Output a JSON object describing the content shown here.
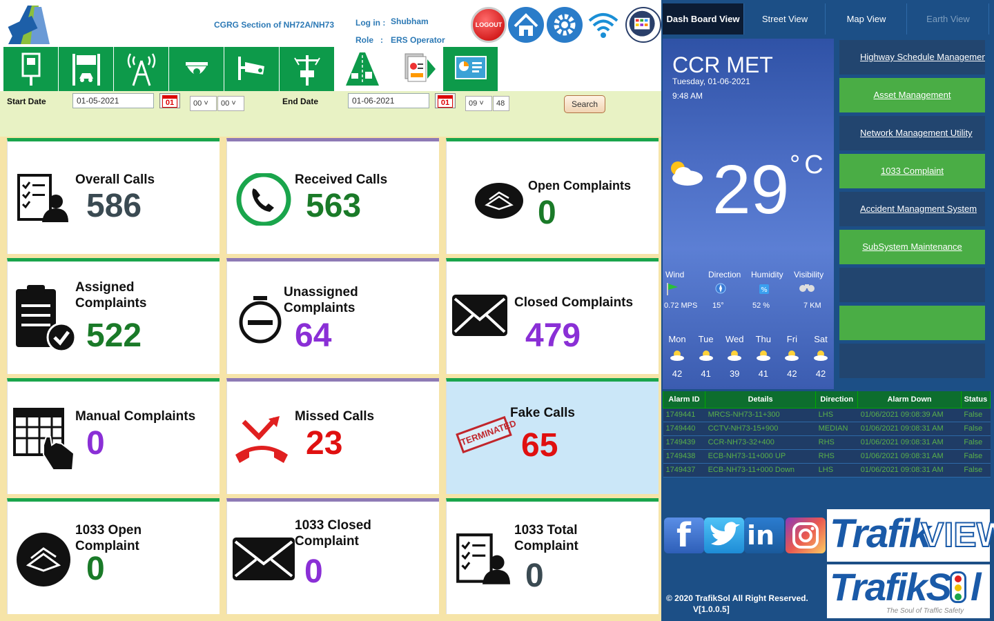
{
  "header": {
    "section": "CGRG Section of NH72A/NH73",
    "login_label": "Log in :",
    "login_value": "Shubham",
    "role_label": "Role",
    "role_colon": ":",
    "role_value": "ERS Operator",
    "logout_label": "LOGOUT"
  },
  "filter": {
    "start_label": "Start Date",
    "start_date": "01-05-2021",
    "start_cal": "01",
    "start_hour": "00",
    "start_min": "00",
    "end_label": "End Date",
    "end_date": "01-06-2021",
    "end_cal": "01",
    "end_hour": "09",
    "end_min": "48",
    "search_label": "Search"
  },
  "cards": {
    "overall_calls": {
      "title": "Overall Calls",
      "value": "586"
    },
    "received_calls": {
      "title": "Received Calls",
      "value": "563"
    },
    "open_complaints": {
      "title": "Open Complaints",
      "value": "0"
    },
    "assigned_complaints": {
      "title1": "Assigned",
      "title2": "Complaints",
      "value": "522"
    },
    "unassigned_complaints": {
      "title1": "Unassigned",
      "title2": "Complaints",
      "value": "64"
    },
    "closed_complaints": {
      "title": "Closed Complaints",
      "value": "479"
    },
    "manual_complaints": {
      "title": "Manual Complaints",
      "value": "0"
    },
    "missed_calls": {
      "title": "Missed Calls",
      "value": "23"
    },
    "fake_calls": {
      "title": "Fake Calls",
      "value": "65",
      "stamp": "TERMINATED"
    },
    "open_1033": {
      "title1": "1033 Open",
      "title2": "Complaint",
      "value": "0"
    },
    "closed_1033": {
      "title1": "1033 Closed",
      "title2": "Complaint",
      "value": "0"
    },
    "total_1033": {
      "title1": "1033 Total",
      "title2": "Complaint",
      "value": "0"
    }
  },
  "tabs": [
    "Dash Board View",
    "Street View",
    "Map View",
    "Earth View"
  ],
  "weather": {
    "location": "CCR MET",
    "date": "Tuesday, 01-06-2021",
    "time": "9:48 AM",
    "temp": "29",
    "unit": "°C",
    "wind_label": "Wind",
    "wind_value": "0.72 MPS",
    "direction_label": "Direction",
    "direction_value": "15°",
    "humidity_label": "Humidity",
    "humidity_value": "52 %",
    "visibility_label": "Visibility",
    "visibility_value": "7 KM",
    "forecast": [
      {
        "day": "Mon",
        "temp": "42"
      },
      {
        "day": "Tue",
        "temp": "41"
      },
      {
        "day": "Wed",
        "temp": "39"
      },
      {
        "day": "Thu",
        "temp": "41"
      },
      {
        "day": "Fri",
        "temp": "42"
      },
      {
        "day": "Sat",
        "temp": "42"
      }
    ]
  },
  "side_menu": [
    "Highway Schedule Management",
    "Asset Management",
    "Network Management Utility",
    "1033 Complaint",
    "Accident Managment System",
    "SubSystem Maintenance",
    "",
    "",
    ""
  ],
  "alarm": {
    "headers": [
      "Alarm ID",
      "Details",
      "Direction",
      "Alarm Down",
      "Status"
    ],
    "rows": [
      [
        "1749441",
        "MRCS-NH73-11+300",
        "LHS",
        "01/06/2021 09:08:39 AM",
        "False"
      ],
      [
        "1749440",
        "CCTV-NH73-15+900",
        "MEDIAN",
        "01/06/2021 09:08:31 AM",
        "False"
      ],
      [
        "1749439",
        "CCR-NH73-32+400",
        "RHS",
        "01/06/2021 09:08:31 AM",
        "False"
      ],
      [
        "1749438",
        "ECB-NH73-11+000 UP",
        "RHS",
        "01/06/2021 09:08:31 AM",
        "False"
      ],
      [
        "1749437",
        "ECB-NH73-11+000 Down",
        "LHS",
        "01/06/2021 09:08:31 AM",
        "False"
      ]
    ]
  },
  "footer": {
    "copyright": "© 2020 TrafikSol All Right Reserved.",
    "version": "V[1.0.0.5]",
    "brand1_a": "Trafik",
    "brand1_b": "VIEW",
    "brand2_a": "TrafikS",
    "brand2_b": "l",
    "tagline": "The Soul of Traffic Safety"
  }
}
